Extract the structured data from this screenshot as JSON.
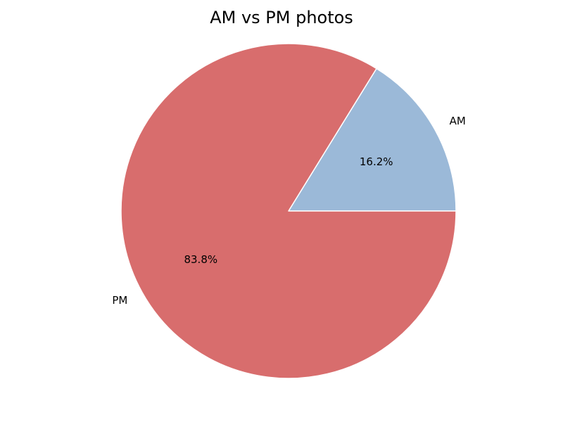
{
  "chart_data": {
    "type": "pie",
    "title": "AM vs PM photos",
    "slices": [
      {
        "label": "AM",
        "value": 16.2,
        "pct_label": "16.2%",
        "color": "#9bb9d8"
      },
      {
        "label": "PM",
        "value": 83.8,
        "pct_label": "83.8%",
        "color": "#d86d6d"
      }
    ],
    "edge_color": "#ffffff"
  }
}
